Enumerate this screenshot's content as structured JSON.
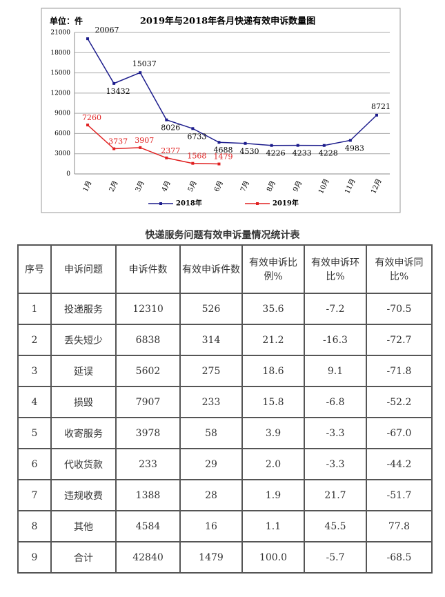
{
  "chart_data": {
    "type": "line",
    "title": "2019年与2018年各月快递有效申诉数量图",
    "unit_label": "单位：件",
    "categories": [
      "1月",
      "2月",
      "3月",
      "4月",
      "5月",
      "6月",
      "7月",
      "8月",
      "9月",
      "10月",
      "11月",
      "12月"
    ],
    "series": [
      {
        "name": "2018年",
        "color": "#1c1c8c",
        "label_color": "#000000",
        "values": [
          20067,
          13432,
          15037,
          8026,
          6733,
          4688,
          4530,
          4226,
          4233,
          4228,
          4983,
          8721
        ]
      },
      {
        "name": "2019年",
        "color": "#e02020",
        "label_color": "#e02020",
        "values": [
          7260,
          3737,
          3907,
          2377,
          1568,
          1479,
          null,
          null,
          null,
          null,
          null,
          null
        ]
      }
    ],
    "ylim": [
      0,
      21000
    ],
    "yticks": [
      0,
      3000,
      6000,
      9000,
      12000,
      15000,
      18000,
      21000
    ],
    "grid": true
  },
  "table": {
    "title": "快递服务问题有效申诉量情况统计表",
    "header": [
      "序号",
      "申诉问题",
      "申诉件数",
      "有效申诉件数",
      "有效申诉比例%",
      "有效申诉环比%",
      "有效申诉同比%"
    ],
    "rows": [
      [
        "1",
        "投递服务",
        "12310",
        "526",
        "35.6",
        "-7.2",
        "-70.5"
      ],
      [
        "2",
        "丢失短少",
        "6838",
        "314",
        "21.2",
        "-16.3",
        "-72.7"
      ],
      [
        "3",
        "延误",
        "5602",
        "275",
        "18.6",
        "9.1",
        "-71.8"
      ],
      [
        "4",
        "损毁",
        "7907",
        "233",
        "15.8",
        "-6.8",
        "-52.2"
      ],
      [
        "5",
        "收寄服务",
        "3978",
        "58",
        "3.9",
        "-3.3",
        "-67.0"
      ],
      [
        "6",
        "代收货款",
        "233",
        "29",
        "2.0",
        "-3.3",
        "-44.2"
      ],
      [
        "7",
        "违规收费",
        "1388",
        "28",
        "1.9",
        "21.7",
        "-51.7"
      ],
      [
        "8",
        "其他",
        "4584",
        "16",
        "1.1",
        "45.5",
        "77.8"
      ],
      [
        "9",
        "合计",
        "42840",
        "1479",
        "100.0",
        "-5.7",
        "-68.5"
      ]
    ]
  }
}
